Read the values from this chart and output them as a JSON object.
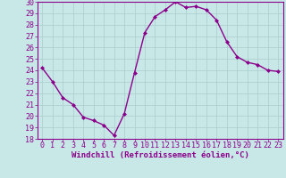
{
  "x": [
    0,
    1,
    2,
    3,
    4,
    5,
    6,
    7,
    8,
    9,
    10,
    11,
    12,
    13,
    14,
    15,
    16,
    17,
    18,
    19,
    20,
    21,
    22,
    23
  ],
  "y": [
    24.2,
    23.0,
    21.6,
    21.0,
    19.9,
    19.6,
    19.2,
    18.3,
    20.2,
    23.8,
    27.3,
    28.7,
    29.3,
    30.0,
    29.5,
    29.6,
    29.3,
    28.4,
    26.5,
    25.2,
    24.7,
    24.5,
    24.0,
    23.9
  ],
  "line_color": "#8B008B",
  "marker": "D",
  "marker_size": 2.0,
  "bg_color": "#C8E8E8",
  "grid_color": "#AACCCC",
  "xlabel": "Windchill (Refroidissement éolien,°C)",
  "ylim": [
    18,
    30
  ],
  "xlim_left": -0.5,
  "xlim_right": 23.5,
  "yticks": [
    18,
    19,
    20,
    21,
    22,
    23,
    24,
    25,
    26,
    27,
    28,
    29,
    30
  ],
  "xticks": [
    0,
    1,
    2,
    3,
    4,
    5,
    6,
    7,
    8,
    9,
    10,
    11,
    12,
    13,
    14,
    15,
    16,
    17,
    18,
    19,
    20,
    21,
    22,
    23
  ],
  "xlabel_color": "#8B008B",
  "tick_color": "#8B008B",
  "spine_color": "#8B008B",
  "font_size_xlabel": 6.5,
  "font_size_ticks": 6.0,
  "line_width": 1.0
}
